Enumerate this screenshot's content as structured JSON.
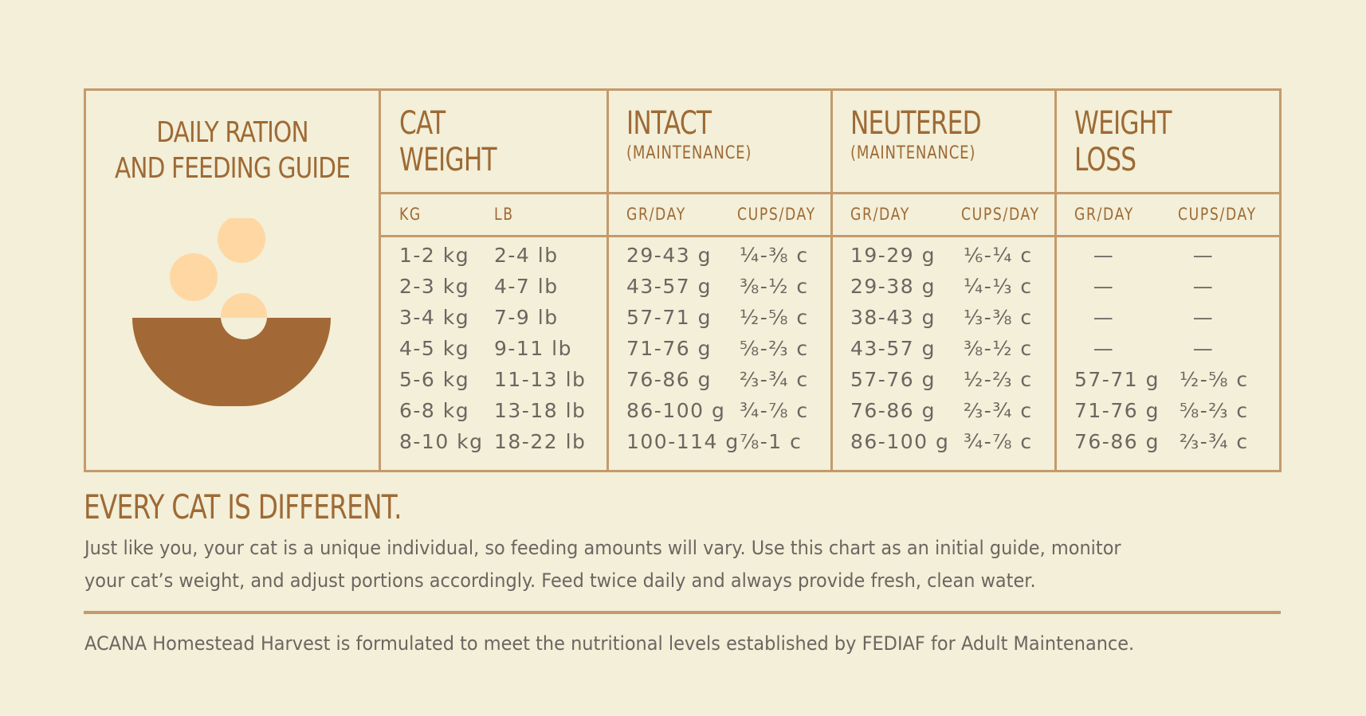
{
  "title_lines": [
    "DAILY RATION",
    "AND FEEDING GUIDE"
  ],
  "colors": {
    "accent": "#9e6a35",
    "border": "#c49a6c",
    "text": "#6b6661",
    "background": "#f3efd8",
    "kibble": "#fed7a3",
    "bowl": "#a26937"
  },
  "illustration": {
    "icon": "food-bowl-with-kibble-icon"
  },
  "columns": [
    {
      "title_lines": [
        "CAT",
        "WEIGHT"
      ],
      "subtitle": "",
      "units": [
        "KG",
        "LB"
      ]
    },
    {
      "title_lines": [
        "INTACT"
      ],
      "subtitle": "(MAINTENANCE)",
      "units": [
        "GR/DAY",
        "CUPS/DAY"
      ]
    },
    {
      "title_lines": [
        "NEUTERED"
      ],
      "subtitle": "(MAINTENANCE)",
      "units": [
        "GR/DAY",
        "CUPS/DAY"
      ]
    },
    {
      "title_lines": [
        "WEIGHT",
        "LOSS"
      ],
      "subtitle": "",
      "units": [
        "GR/DAY",
        "CUPS/DAY"
      ]
    }
  ],
  "rows": [
    [
      "1-2 kg",
      "2-4 lb",
      "29-43 g",
      "¼-⅜ c",
      "19-29 g",
      "⅙-¼ c",
      "—",
      "—"
    ],
    [
      "2-3 kg",
      "4-7 lb",
      "43-57 g",
      "⅜-½ c",
      "29-38 g",
      "¼-⅓ c",
      "—",
      "—"
    ],
    [
      "3-4 kg",
      "7-9 lb",
      "57-71 g",
      "½-⅝ c",
      "38-43 g",
      "⅓-⅜ c",
      "—",
      "—"
    ],
    [
      "4-5 kg",
      "9-11 lb",
      "71-76 g",
      "⅝-⅔ c",
      "43-57 g",
      "⅜-½ c",
      "—",
      "—"
    ],
    [
      "5-6 kg",
      "11-13 lb",
      "76-86 g",
      "⅔-¾ c",
      "57-76 g",
      "½-⅔ c",
      "57-71 g",
      "½-⅝ c"
    ],
    [
      "6-8 kg",
      "13-18 lb",
      "86-100 g",
      "¾-⅞ c",
      "76-86 g",
      "⅔-¾ c",
      "71-76 g",
      "⅝-⅔ c"
    ],
    [
      "8-10 kg",
      "18-22 lb",
      "100-114 g",
      "⅞-1 c",
      "86-100 g",
      "¾-⅞ c",
      "76-86 g",
      "⅔-¾ c"
    ]
  ],
  "headline": "EVERY CAT IS DIFFERENT.",
  "body_lines": [
    "Just like you, your cat is a unique individual, so feeding amounts will vary. Use this chart as an initial guide, monitor",
    "your cat’s weight, and adjust portions accordingly. Feed twice daily and always provide fresh, clean water."
  ],
  "footer_note": "ACANA Homestead Harvest is formulated to meet the nutritional levels established by FEDIAF for Adult Maintenance."
}
